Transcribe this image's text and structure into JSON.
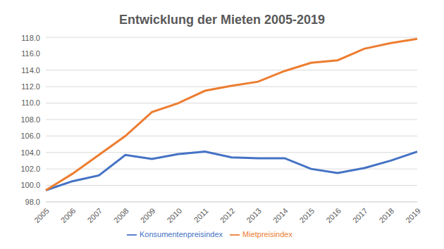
{
  "chart_data": {
    "type": "line",
    "title": "Entwicklung der Mieten 2005-2019",
    "categories": [
      "2005",
      "2006",
      "2007",
      "2008",
      "2009",
      "2010",
      "2011",
      "2012",
      "2013",
      "2014",
      "2015",
      "2016",
      "2017",
      "2018",
      "2019"
    ],
    "series": [
      {
        "name": "Konsumentenpreisindex",
        "color": "#4472c4",
        "values": [
          99.4,
          100.5,
          101.2,
          103.7,
          103.2,
          103.8,
          104.1,
          103.4,
          103.3,
          103.3,
          102.0,
          101.5,
          102.1,
          103.0,
          104.1
        ]
      },
      {
        "name": "Mietpreisindex",
        "color": "#ed7d31",
        "values": [
          99.4,
          101.4,
          103.7,
          106.0,
          108.9,
          110.0,
          111.5,
          112.1,
          112.6,
          113.9,
          114.9,
          115.2,
          116.6,
          117.3,
          117.8
        ]
      }
    ],
    "ylim": [
      98,
      118
    ],
    "yticks": [
      {
        "value": 98,
        "label": "98.0"
      },
      {
        "value": 100,
        "label": "100.0"
      },
      {
        "value": 102,
        "label": "102.0"
      },
      {
        "value": 104,
        "label": "104.0"
      },
      {
        "value": 106,
        "label": "106.0"
      },
      {
        "value": 108,
        "label": "108.0"
      },
      {
        "value": 110,
        "label": "110.0"
      },
      {
        "value": 112,
        "label": "112.0"
      },
      {
        "value": 114,
        "label": "114.0"
      },
      {
        "value": 116,
        "label": "116.0"
      },
      {
        "value": 118,
        "label": "118.0"
      }
    ],
    "grid": true,
    "legend": "bottom",
    "marker": "none"
  }
}
